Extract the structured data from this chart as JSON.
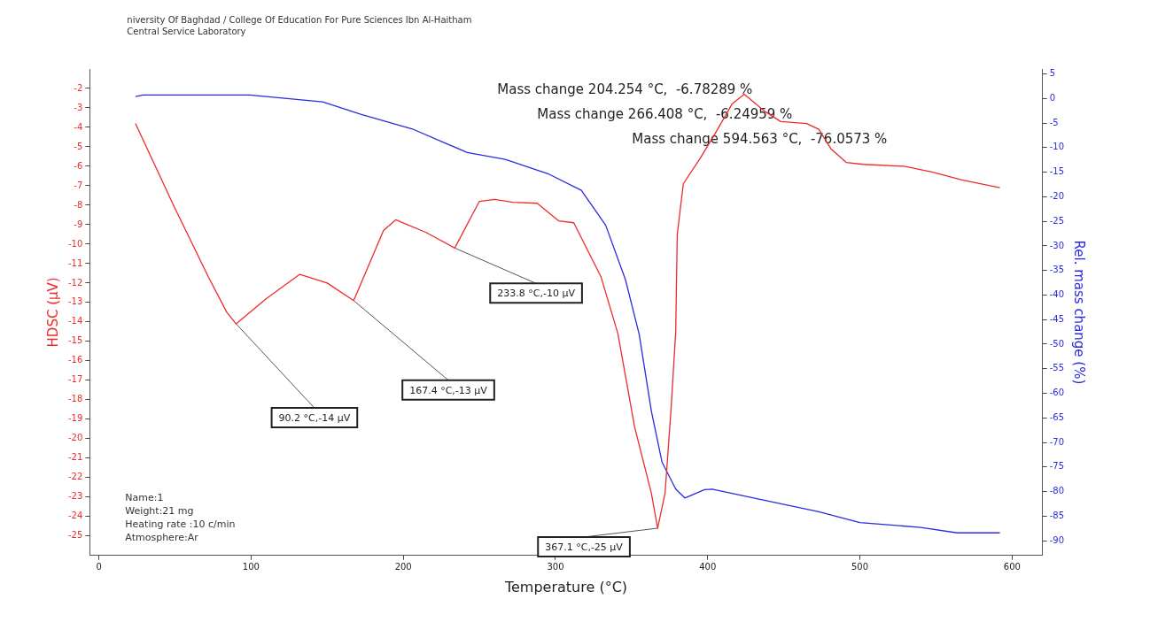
{
  "chart_data": {
    "type": "line",
    "title": "niversity Of Baghdad / College Of Education For Pure Sciences Ibn Al-Haitham",
    "subtitle": "Central Service Laboratory",
    "xlabel": "Temperature (°C)",
    "ylabel": "HDSC (µV)",
    "y2label": "Rel. mass change (%)",
    "xlim": [
      -6,
      620
    ],
    "xticks": [
      0,
      100,
      200,
      300,
      400,
      500,
      600
    ],
    "ylim": [
      -26,
      -1
    ],
    "yticks": [
      -2,
      -3,
      -4,
      -5,
      -6,
      -7,
      -8,
      -9,
      -10,
      -11,
      -12,
      -13,
      -14,
      -15,
      -16,
      -17,
      -18,
      -19,
      -20,
      -21,
      -22,
      -23,
      -24,
      -25
    ],
    "y2lim": [
      -93,
      6
    ],
    "y2ticks": [
      5,
      0,
      -5,
      -10,
      -15,
      -20,
      -25,
      -30,
      -35,
      -40,
      -45,
      -50,
      -55,
      -60,
      -65,
      -70,
      -75,
      -80,
      -85,
      -90
    ],
    "grid": false,
    "legend": false,
    "marker": "none",
    "line_style": "solid",
    "series": [
      {
        "color": "#ee2b2b",
        "x": [
          24,
          49,
          72,
          84,
          90.2,
          110,
          132,
          150,
          167.4,
          187,
          195,
          215,
          233.8,
          250,
          260,
          272,
          288,
          302,
          312,
          330,
          341,
          352,
          363,
          367.1,
          372,
          376,
          379,
          380,
          384,
          395,
          405,
          416,
          424,
          438,
          448,
          465,
          473,
          481,
          491,
          502,
          529,
          548,
          567,
          592
        ],
        "values": [
          -3.8,
          -8.0,
          -11.7,
          -13.5,
          -14.1,
          -12.8,
          -11.55,
          -12.0,
          -12.9,
          -9.3,
          -8.75,
          -9.4,
          -10.2,
          -7.8,
          -7.7,
          -7.85,
          -7.9,
          -8.8,
          -8.9,
          -11.7,
          -14.6,
          -19.4,
          -22.8,
          -24.6,
          -22.8,
          -18.4,
          -14.5,
          -9.5,
          -6.9,
          -5.6,
          -4.3,
          -2.8,
          -2.3,
          -3.2,
          -3.7,
          -3.8,
          -4.1,
          -5.1,
          -5.8,
          -5.9,
          -6.0,
          -6.3,
          -6.7,
          -7.1
        ]
      },
      {
        "color": "#2a2ae0",
        "axis": "y2",
        "x": [
          24,
          29,
          99,
          147,
          172,
          206,
          242,
          267,
          295,
          317,
          333,
          346,
          355,
          363,
          370,
          379,
          385,
          398,
          403,
          433,
          473,
          500,
          540,
          564,
          592
        ],
        "values": [
          0.4,
          0.7,
          0.7,
          -0.7,
          -3.2,
          -6.2,
          -11,
          -12.4,
          -15.3,
          -18.7,
          -25.8,
          -36.9,
          -48,
          -63.6,
          -74,
          -79.5,
          -81.3,
          -79.6,
          -79.5,
          -81.5,
          -84.1,
          -86.3,
          -87.3,
          -88.4,
          -88.4
        ]
      }
    ],
    "annotations": [
      "Mass change 204.254 °C,  -6.78289 %",
      "Mass change 266.408 °C,  -6.24959 %",
      "Mass change 594.563 °C,  -76.0573 %",
      "Name:1",
      "Weight:21 mg",
      "Heating rate :10 c/min",
      "Atmosphere:Ar",
      {
        "text": "90.2 °C,-14 µV",
        "x": 90.2,
        "y": -14.1
      },
      {
        "text": "167.4 °C,-13 µV",
        "x": 167.4,
        "y": -12.9
      },
      {
        "text": "233.8 °C,-10 µV",
        "x": 233.8,
        "y": -10.2
      },
      {
        "text": "367.1 °C,-25 µV",
        "x": 367.1,
        "y": -24.6
      }
    ]
  }
}
